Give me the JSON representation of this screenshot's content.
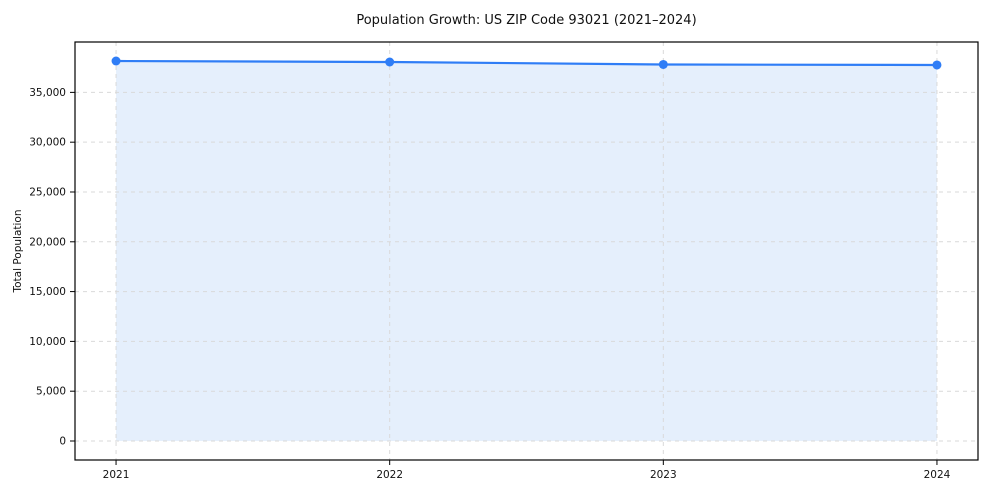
{
  "chart_data": {
    "type": "line",
    "title": "Population Growth: US ZIP Code 93021 (2021–2024)",
    "xlabel": "",
    "ylabel": "Total Population",
    "x": [
      "2021",
      "2022",
      "2023",
      "2024"
    ],
    "series": [
      {
        "name": "Total Population",
        "values": [
          38150,
          38050,
          37800,
          37750
        ]
      }
    ],
    "ylim": [
      -1908,
      40058
    ],
    "yticks": [
      0,
      5000,
      10000,
      15000,
      20000,
      25000,
      30000,
      35000
    ],
    "ytick_labels": [
      "0",
      "5,000",
      "10,000",
      "15,000",
      "20,000",
      "25,000",
      "30,000",
      "35,000"
    ],
    "grid": true,
    "grid_style": "dashed",
    "legend": "none",
    "area_fill": true,
    "colors": {
      "line": "#2f7df6",
      "marker": "#2f7df6",
      "fill": "#dce9fb",
      "grid": "#d9d9d9",
      "axis": "#000000",
      "background": "#ffffff"
    }
  }
}
